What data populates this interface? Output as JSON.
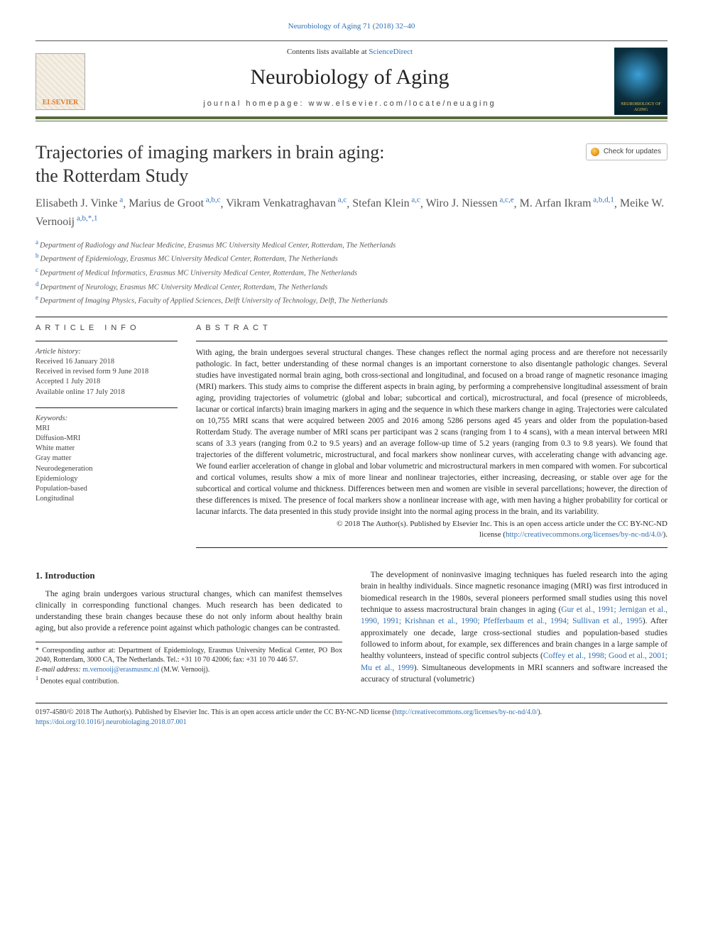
{
  "citation": "Neurobiology of Aging 71 (2018) 32–40",
  "masthead": {
    "contents_prefix": "Contents lists available at ",
    "contents_link": "ScienceDirect",
    "journal": "Neurobiology of Aging",
    "homepage_prefix": "journal homepage: ",
    "homepage": "www.elsevier.com/locate/neuaging",
    "publisher_logo": "ELSEVIER",
    "cover_caption": "NEUROBIOLOGY OF AGING"
  },
  "updates_badge": "Check for updates",
  "title_line1": "Trajectories of imaging markers in brain aging:",
  "title_line2": "the Rotterdam Study",
  "authors": [
    {
      "name": "Elisabeth J. Vinke",
      "sup": "a"
    },
    {
      "name": "Marius de Groot",
      "sup": "a,b,c"
    },
    {
      "name": "Vikram Venkatraghavan",
      "sup": "a,c"
    },
    {
      "name": "Stefan Klein",
      "sup": "a,c"
    },
    {
      "name": "Wiro J. Niessen",
      "sup": "a,c,e"
    },
    {
      "name": "M. Arfan Ikram",
      "sup": "a,b,d,1"
    },
    {
      "name": "Meike W. Vernooij",
      "sup": "a,b,*,1"
    }
  ],
  "affiliations": [
    {
      "k": "a",
      "t": "Department of Radiology and Nuclear Medicine, Erasmus MC University Medical Center, Rotterdam, The Netherlands"
    },
    {
      "k": "b",
      "t": "Department of Epidemiology, Erasmus MC University Medical Center, Rotterdam, The Netherlands"
    },
    {
      "k": "c",
      "t": "Department of Medical Informatics, Erasmus MC University Medical Center, Rotterdam, The Netherlands"
    },
    {
      "k": "d",
      "t": "Department of Neurology, Erasmus MC University Medical Center, Rotterdam, The Netherlands"
    },
    {
      "k": "e",
      "t": "Department of Imaging Physics, Faculty of Applied Sciences, Delft University of Technology, Delft, The Netherlands"
    }
  ],
  "article_info_label": "ARTICLE INFO",
  "abstract_label": "ABSTRACT",
  "history_label": "Article history:",
  "history": [
    "Received 16 January 2018",
    "Received in revised form 9 June 2018",
    "Accepted 1 July 2018",
    "Available online 17 July 2018"
  ],
  "keywords_label": "Keywords:",
  "keywords": [
    "MRI",
    "Diffusion-MRI",
    "White matter",
    "Gray matter",
    "Neurodegeneration",
    "Epidemiology",
    "Population-based",
    "Longitudinal"
  ],
  "abstract": "With aging, the brain undergoes several structural changes. These changes reflect the normal aging process and are therefore not necessarily pathologic. In fact, better understanding of these normal changes is an important cornerstone to also disentangle pathologic changes. Several studies have investigated normal brain aging, both cross-sectional and longitudinal, and focused on a broad range of magnetic resonance imaging (MRI) markers. This study aims to comprise the different aspects in brain aging, by performing a comprehensive longitudinal assessment of brain aging, providing trajectories of volumetric (global and lobar; subcortical and cortical), microstructural, and focal (presence of microbleeds, lacunar or cortical infarcts) brain imaging markers in aging and the sequence in which these markers change in aging. Trajectories were calculated on 10,755 MRI scans that were acquired between 2005 and 2016 among 5286 persons aged 45 years and older from the population-based Rotterdam Study. The average number of MRI scans per participant was 2 scans (ranging from 1 to 4 scans), with a mean interval between MRI scans of 3.3 years (ranging from 0.2 to 9.5 years) and an average follow-up time of 5.2 years (ranging from 0.3 to 9.8 years). We found that trajectories of the different volumetric, microstructural, and focal markers show nonlinear curves, with accelerating change with advancing age. We found earlier acceleration of change in global and lobar volumetric and microstructural markers in men compared with women. For subcortical and cortical volumes, results show a mix of more linear and nonlinear trajectories, either increasing, decreasing, or stable over age for the subcortical and cortical volume and thickness. Differences between men and women are visible in several parcellations; however, the direction of these differences is mixed. The presence of focal markers show a nonlinear increase with age, with men having a higher probability for cortical or lacunar infarcts. The data presented in this study provide insight into the normal aging process in the brain, and its variability.",
  "copyright": "© 2018 The Author(s). Published by Elsevier Inc. This is an open access article under the CC BY-NC-ND",
  "license_prefix": "license (",
  "license_link": "http://creativecommons.org/licenses/by-nc-nd/4.0/",
  "license_suffix": ").",
  "intro_heading": "1. Introduction",
  "intro_p1": "The aging brain undergoes various structural changes, which can manifest themselves clinically in corresponding functional changes. Much research has been dedicated to understanding these brain changes because these do not only inform about healthy brain aging, but also provide a reference point against which pathologic changes can be contrasted.",
  "intro_p2_a": "The development of noninvasive imaging techniques has fueled research into the aging brain in healthy individuals. Since magnetic resonance imaging (MRI) was first introduced in biomedical research in the 1980s, several pioneers performed small studies using this novel technique to assess macrostructural brain changes in aging (",
  "intro_p2_link1": "Gur et al., 1991; Jernigan et al., 1990, 1991; Krishnan et al., 1990; Pfefferbaum et al., 1994; Sullivan et al., 1995",
  "intro_p2_b": "). After approximately one decade, large cross-sectional studies and population-based studies followed to inform about, for example, sex differences and brain changes in a large sample of healthy volunteers, instead of specific control subjects (",
  "intro_p2_link2": "Coffey et al., 1998; Good et al., 2001; Mu et al., 1999",
  "intro_p2_c": "). Simultaneous developments in MRI scanners and software increased the accuracy of structural (volumetric)",
  "footnote_corr": "* Corresponding author at: Department of Epidemiology, Erasmus University Medical Center, PO Box 2040, Rotterdam, 3000 CA, The Netherlands. Tel.: +31 10 70 42006; fax: +31 10 70 446 57.",
  "footnote_email_label": "E-mail address: ",
  "footnote_email": "m.vernooij@erasmusmc.nl",
  "footnote_email_who": " (M.W. Vernooij).",
  "footnote_equal": "Denotes equal contribution.",
  "footnote_equal_sup": "1",
  "footer_line1_a": "0197-4580/© 2018 The Author(s). Published by Elsevier Inc. This is an open access article under the CC BY-NC-ND license (",
  "footer_line1_link": "http://creativecommons.org/licenses/by-nc-nd/4.0/",
  "footer_line1_b": ").",
  "footer_doi": "https://doi.org/10.1016/j.neurobiolaging.2018.07.001",
  "colors": {
    "link": "#2e6fb5",
    "rule_olive": "#5a6b3a",
    "text": "#2a2a2a"
  }
}
